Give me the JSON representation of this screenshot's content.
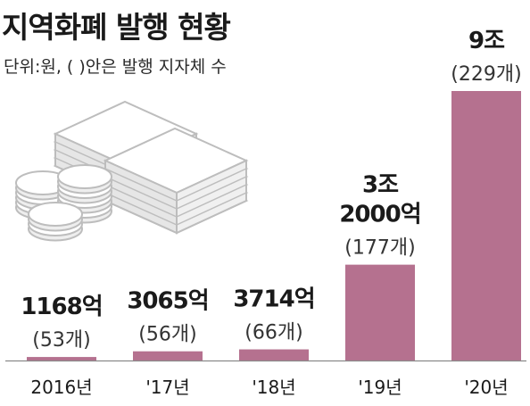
{
  "title": "지역화폐 발행 현황",
  "subtitle": "단위:원, (  )안은 발행 지자체 수",
  "colors": {
    "bar": "#b5718f",
    "text": "#1a1a1a",
    "count_text": "#333333",
    "baseline": "#8a8a8a",
    "icon_stroke": "#bdbdbd",
    "icon_fill": "#ffffff"
  },
  "illustration": "money-stack-and-coins-icon",
  "chart_data": {
    "type": "bar",
    "title": "지역화폐 발행 현황",
    "subtitle": "단위:원, (  )안은 발행 지자체 수",
    "unit": "억원",
    "categories": [
      "2016년",
      "'17년",
      "'18년",
      "'19년",
      "'20년"
    ],
    "values": [
      1168,
      3065,
      3714,
      32000,
      90000
    ],
    "value_labels": [
      [
        "1168억"
      ],
      [
        "3065억"
      ],
      [
        "3714억"
      ],
      [
        "3조",
        "2000억"
      ],
      [
        "9조"
      ]
    ],
    "count_labels": [
      "(53개)",
      "(56개)",
      "(66개)",
      "(177개)",
      "(229개)"
    ],
    "ylim": [
      0,
      90000
    ],
    "grid": false
  }
}
